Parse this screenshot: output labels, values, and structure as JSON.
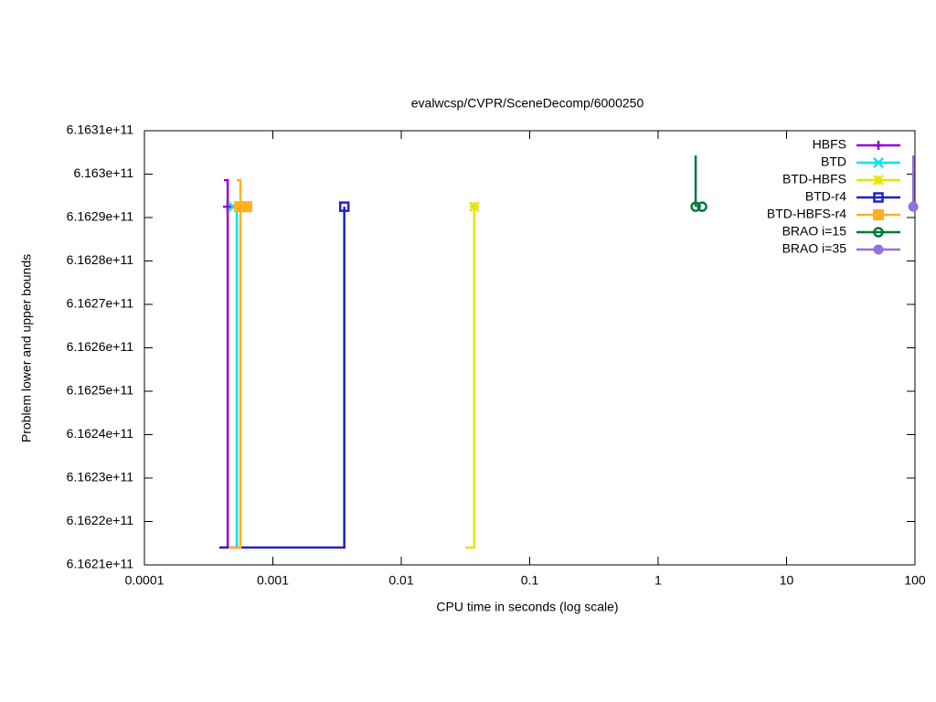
{
  "chart_data": {
    "type": "line",
    "title": "evalwcsp/CVPR/SceneDecomp/6000250",
    "x_label": "CPU time in seconds (log scale)",
    "y_label": "Problem lower and upper bounds",
    "x_scale": "log",
    "xlim": [
      0.0001,
      100
    ],
    "xticks": [
      0.0001,
      0.001,
      0.01,
      0.1,
      1,
      10,
      100
    ],
    "ylim": [
      616210000000,
      616310000000
    ],
    "yticks": [
      {
        "value": 616210000000,
        "label": "6.1621e+11"
      },
      {
        "value": 616220000000,
        "label": "6.1622e+11"
      },
      {
        "value": 616230000000,
        "label": "6.1623e+11"
      },
      {
        "value": 616240000000,
        "label": "6.1624e+11"
      },
      {
        "value": 616250000000,
        "label": "6.1625e+11"
      },
      {
        "value": 616260000000,
        "label": "6.1626e+11"
      },
      {
        "value": 616270000000,
        "label": "6.1627e+11"
      },
      {
        "value": 616280000000,
        "label": "6.1628e+11"
      },
      {
        "value": 616290000000,
        "label": "6.1629e+11"
      },
      {
        "value": 616300000000,
        "label": "6.163e+11"
      },
      {
        "value": 616310000000,
        "label": "6.1631e+11"
      }
    ],
    "legend": "top-right",
    "series": [
      {
        "name": "HBFS",
        "color": "#9400d3",
        "marker": "plus",
        "x": [
          0.000416,
          0.000445,
          0.000445
        ],
        "values": [
          616298600000,
          616298600000,
          616214000000
        ],
        "point_x": [
          0.000445
        ],
        "point_values": [
          616292500000
        ]
      },
      {
        "name": "BTD",
        "color": "#00e5ee",
        "marker": "cross",
        "x": [
          0.000524,
          0.000524
        ],
        "values": [
          616292500000,
          616214000000
        ],
        "point_x": [
          0.00049
        ],
        "point_values": [
          616292500000
        ]
      },
      {
        "name": "BTD-HBFS",
        "color": "#e5e500",
        "marker": "star",
        "x": [
          0.037,
          0.037,
          0.0315
        ],
        "values": [
          616292500000,
          616214000000,
          616214000000
        ],
        "point_x": [
          0.037
        ],
        "point_values": [
          616292500000
        ]
      },
      {
        "name": "BTD-r4",
        "color": "#2020c0",
        "marker": "square-open",
        "x": [
          0.000383,
          0.0036,
          0.0036
        ],
        "values": [
          616214000000,
          616214000000,
          616292500000
        ],
        "point_x": [
          0.0036
        ],
        "point_values": [
          616292500000
        ]
      },
      {
        "name": "BTD-HBFS-r4",
        "color": "#ffb020",
        "marker": "square",
        "x": [
          0.000524,
          0.000559,
          0.000559,
          0.000452
        ],
        "values": [
          616298600000,
          616298600000,
          616214000000,
          616214000000
        ],
        "point_x": [
          0.00055,
          0.000627
        ],
        "point_values": [
          616292500000,
          616292500000
        ]
      },
      {
        "name": "BRAO i=15",
        "color": "#007a3d",
        "marker": "circle-open",
        "x": [
          1.96,
          1.96
        ],
        "values": [
          616304300000,
          616292500000
        ],
        "point_x": [
          1.96,
          2.2
        ],
        "point_values": [
          616292500000,
          616292500000
        ]
      },
      {
        "name": "BRAO i=35",
        "color": "#9370db",
        "marker": "circle",
        "x": [
          97,
          97
        ],
        "values": [
          616304300000,
          616292500000
        ],
        "point_x": [
          97
        ],
        "point_values": [
          616292500000
        ]
      }
    ]
  }
}
